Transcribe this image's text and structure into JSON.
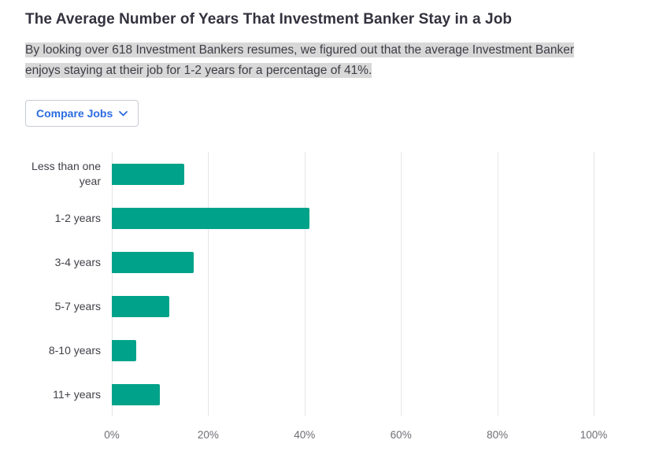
{
  "page": {
    "title": "The Average Number of Years That Investment Banker Stay in a Job",
    "subtitle": "By looking over 618 Investment Bankers resumes, we figured out that the average Investment Banker enjoys staying at their job for 1-2 years for a percentage of 41%.",
    "compare_button_label": "Compare Jobs"
  },
  "colors": {
    "bar": "#00A389",
    "button_text": "#2b6be0",
    "highlight": "#d8d8d8",
    "gridline": "#e5e5e8"
  },
  "chart_data": {
    "type": "bar",
    "orientation": "horizontal",
    "title": "The Average Number of Years That Investment Banker Stay in a Job",
    "categories": [
      "Less than one year",
      "1-2 years",
      "3-4 years",
      "5-7 years",
      "8-10 years",
      "11+ years"
    ],
    "values": [
      15,
      41,
      17,
      12,
      5,
      10
    ],
    "value_unit": "%",
    "xlim": [
      0,
      100
    ],
    "xticks": [
      "0%",
      "20%",
      "40%",
      "60%",
      "80%",
      "100%"
    ],
    "grid": true,
    "legend": false
  }
}
